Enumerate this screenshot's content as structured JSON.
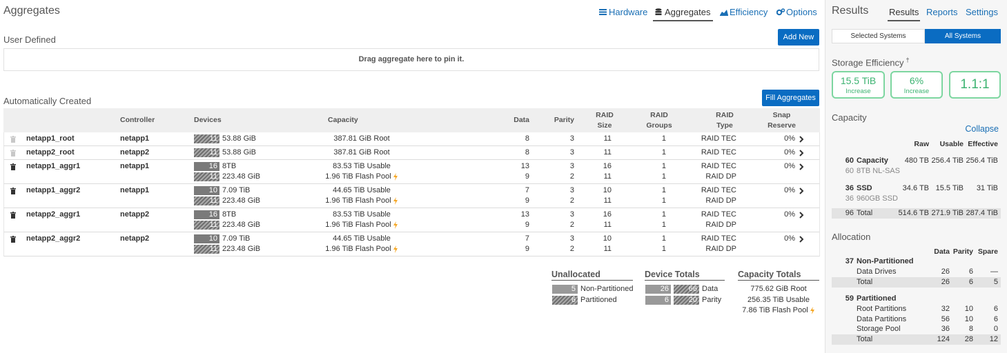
{
  "header": {
    "title": "Aggregates",
    "tabs": [
      "Hardware",
      "Aggregates",
      "Efficiency",
      "Options"
    ],
    "active_tab": 1
  },
  "user_defined": {
    "title": "User Defined",
    "button": "Add New",
    "placeholder": "Drag aggregate here to pin it."
  },
  "auto": {
    "title": "Automatically Created",
    "button": "Fill Aggregates",
    "columns": [
      "Controller",
      "Devices",
      "Capacity",
      "Data",
      "Parity",
      "RAID Size",
      "RAID Groups",
      "RAID Type",
      "Snap Reserve"
    ],
    "rows": [
      {
        "name": "netapp1_root",
        "controller": "netapp1",
        "deletable": false,
        "snap_reserve": "0%",
        "groups": [
          {
            "devices": 11,
            "partitioned": true,
            "size": "53.88 GiB",
            "capacity": "387.81 GiB Root",
            "flash_pool": false,
            "data": 8,
            "parity": 3,
            "raid_size": 11,
            "raid_groups": 1,
            "raid_type": "RAID TEC"
          }
        ]
      },
      {
        "name": "netapp2_root",
        "controller": "netapp2",
        "deletable": false,
        "snap_reserve": "0%",
        "groups": [
          {
            "devices": 11,
            "partitioned": true,
            "size": "53.88 GiB",
            "capacity": "387.81 GiB Root",
            "flash_pool": false,
            "data": 8,
            "parity": 3,
            "raid_size": 11,
            "raid_groups": 1,
            "raid_type": "RAID TEC"
          }
        ]
      },
      {
        "name": "netapp1_aggr1",
        "controller": "netapp1",
        "deletable": true,
        "snap_reserve": "0%",
        "groups": [
          {
            "devices": 16,
            "partitioned": false,
            "size": "8TB",
            "capacity": "83.53 TiB Usable",
            "flash_pool": false,
            "data": 13,
            "parity": 3,
            "raid_size": 16,
            "raid_groups": 1,
            "raid_type": "RAID TEC"
          },
          {
            "devices": 11,
            "partitioned": true,
            "size": "223.48 GiB",
            "capacity": "1.96 TiB Flash Pool",
            "flash_pool": true,
            "data": 9,
            "parity": 2,
            "raid_size": 11,
            "raid_groups": 1,
            "raid_type": "RAID DP"
          }
        ]
      },
      {
        "name": "netapp1_aggr2",
        "controller": "netapp1",
        "deletable": true,
        "snap_reserve": "0%",
        "groups": [
          {
            "devices": 10,
            "partitioned": false,
            "size": "7.09 TiB",
            "capacity": "44.65 TiB Usable",
            "flash_pool": false,
            "data": 7,
            "parity": 3,
            "raid_size": 10,
            "raid_groups": 1,
            "raid_type": "RAID TEC"
          },
          {
            "devices": 11,
            "partitioned": true,
            "size": "223.48 GiB",
            "capacity": "1.96 TiB Flash Pool",
            "flash_pool": true,
            "data": 9,
            "parity": 2,
            "raid_size": 11,
            "raid_groups": 1,
            "raid_type": "RAID DP"
          }
        ]
      },
      {
        "name": "netapp2_aggr1",
        "controller": "netapp2",
        "deletable": true,
        "snap_reserve": "0%",
        "groups": [
          {
            "devices": 16,
            "partitioned": false,
            "size": "8TB",
            "capacity": "83.53 TiB Usable",
            "flash_pool": false,
            "data": 13,
            "parity": 3,
            "raid_size": 16,
            "raid_groups": 1,
            "raid_type": "RAID TEC"
          },
          {
            "devices": 11,
            "partitioned": true,
            "size": "223.48 GiB",
            "capacity": "1.96 TiB Flash Pool",
            "flash_pool": true,
            "data": 9,
            "parity": 2,
            "raid_size": 11,
            "raid_groups": 1,
            "raid_type": "RAID DP"
          }
        ]
      },
      {
        "name": "netapp2_aggr2",
        "controller": "netapp2",
        "deletable": true,
        "snap_reserve": "0%",
        "groups": [
          {
            "devices": 10,
            "partitioned": false,
            "size": "7.09 TiB",
            "capacity": "44.65 TiB Usable",
            "flash_pool": false,
            "data": 7,
            "parity": 3,
            "raid_size": 10,
            "raid_groups": 1,
            "raid_type": "RAID TEC"
          },
          {
            "devices": 11,
            "partitioned": true,
            "size": "223.48 GiB",
            "capacity": "1.96 TiB Flash Pool",
            "flash_pool": true,
            "data": 9,
            "parity": 2,
            "raid_size": 11,
            "raid_groups": 1,
            "raid_type": "RAID DP"
          }
        ]
      }
    ]
  },
  "unallocated": {
    "title": "Unallocated",
    "items": [
      {
        "count": 5,
        "partitioned": false,
        "label": "Non-Partitioned"
      },
      {
        "count": 6,
        "partitioned": true,
        "label": "Partitioned"
      }
    ]
  },
  "device_totals": {
    "title": "Device Totals",
    "items": [
      {
        "counts": [
          26,
          66
        ],
        "label": "Data"
      },
      {
        "counts": [
          6,
          20
        ],
        "label": "Parity"
      }
    ]
  },
  "capacity_totals": {
    "title": "Capacity Totals",
    "items": [
      {
        "text": "775.62 GiB Root",
        "flash_pool": false
      },
      {
        "text": "256.35 TiB Usable",
        "flash_pool": false
      },
      {
        "text": "7.86 TiB Flash Pool",
        "flash_pool": true
      }
    ]
  },
  "results": {
    "title": "Results",
    "tabs": [
      "Results",
      "Reports",
      "Settings"
    ],
    "active_tab": 0,
    "toggle": [
      "Selected Systems",
      "All Systems"
    ],
    "active_toggle": 1
  },
  "storage_efficiency": {
    "title": "Storage Efficiency",
    "note_mark": "†",
    "cards": [
      {
        "value": "15.5 TiB",
        "label": "Increase"
      },
      {
        "value": "6%",
        "label": "Increase"
      },
      {
        "value": "1.1:1"
      }
    ]
  },
  "capacity": {
    "title": "Capacity",
    "link": "Collapse",
    "columns": [
      "Raw",
      "Usable",
      "Effective"
    ],
    "rows": [
      {
        "count": 60,
        "name": "Capacity",
        "sub_count": 60,
        "sub_label": "8TB NL-SAS",
        "values": [
          "480 TB",
          "256.4 TiB",
          "256.4 TiB"
        ]
      },
      {
        "count": 36,
        "name": "SSD",
        "sub_count": 36,
        "sub_label": "960GB SSD",
        "values": [
          "34.6 TB",
          "15.5 TiB",
          "31 TiB"
        ]
      }
    ],
    "total": {
      "count": 96,
      "label": "Total",
      "values": [
        "514.6 TB",
        "271.9 TiB",
        "287.4 TiB"
      ]
    }
  },
  "allocation": {
    "title": "Allocation",
    "columns": [
      "Data",
      "Parity",
      "Spare"
    ],
    "groups": [
      {
        "count": 37,
        "name": "Non-Partitioned",
        "rows": [
          {
            "label": "Data Drives",
            "values": [
              26,
              6,
              "—"
            ],
            "total": false
          },
          {
            "label": "Total",
            "values": [
              26,
              6,
              5
            ],
            "total": true
          }
        ]
      },
      {
        "count": 59,
        "name": "Partitioned",
        "rows": [
          {
            "label": "Root Partitions",
            "values": [
              32,
              10,
              6
            ],
            "total": false
          },
          {
            "label": "Data Partitions",
            "values": [
              56,
              10,
              6
            ],
            "total": false
          },
          {
            "label": "Storage Pool",
            "values": [
              36,
              8,
              0
            ],
            "total": false
          },
          {
            "label": "Total",
            "values": [
              124,
              28,
              12
            ],
            "total": true
          }
        ]
      }
    ]
  }
}
